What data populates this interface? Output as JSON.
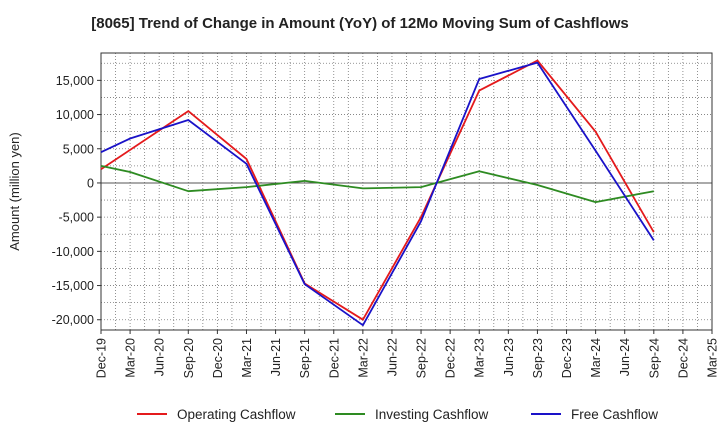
{
  "chart_data": {
    "type": "line",
    "title": "[8065]  Trend of Change in Amount (YoY) of 12Mo Moving Sum of Cashflows",
    "xlabel": "",
    "ylabel": "Amount (million yen)",
    "ylim": [
      -21500,
      19000
    ],
    "yticks": [
      15000,
      10000,
      5000,
      0,
      -5000,
      -10000,
      -15000,
      -20000
    ],
    "ytick_labels": [
      "15,000",
      "10,000",
      "5,000",
      "0",
      "-5,000",
      "-10,000",
      "-15,000",
      "-20,000"
    ],
    "categories": [
      "Dec-19",
      "Mar-20",
      "Jun-20",
      "Sep-20",
      "Dec-20",
      "Mar-21",
      "Jun-21",
      "Sep-21",
      "Dec-21",
      "Mar-22",
      "Jun-22",
      "Sep-22",
      "Dec-22",
      "Mar-23",
      "Jun-23",
      "Sep-23",
      "Dec-23",
      "Mar-24",
      "Jun-24",
      "Sep-24",
      "Dec-24",
      "Mar-25"
    ],
    "grid": true,
    "legend_position": "bottom",
    "series": [
      {
        "name": "Operating Cashflow",
        "color": "#e41a1c",
        "values": [
          2000,
          null,
          null,
          10500,
          null,
          3500,
          null,
          -14700,
          null,
          -20000,
          null,
          -5000,
          null,
          13500,
          null,
          17900,
          null,
          7500,
          null,
          -7200,
          null,
          null
        ]
      },
      {
        "name": "Investing Cashflow",
        "color": "#2e8b22",
        "values": [
          2500,
          1600,
          null,
          -1200,
          null,
          -600,
          null,
          300,
          null,
          -800,
          null,
          -600,
          null,
          1700,
          null,
          -300,
          null,
          -2800,
          null,
          -1200,
          null,
          null
        ]
      },
      {
        "name": "Free Cashflow",
        "color": "#1a12c8",
        "values": [
          4500,
          6500,
          null,
          9200,
          null,
          2800,
          null,
          -14800,
          null,
          -20800,
          null,
          -5600,
          null,
          15200,
          null,
          17600,
          null,
          4700,
          null,
          -8400,
          null,
          null
        ]
      }
    ]
  }
}
